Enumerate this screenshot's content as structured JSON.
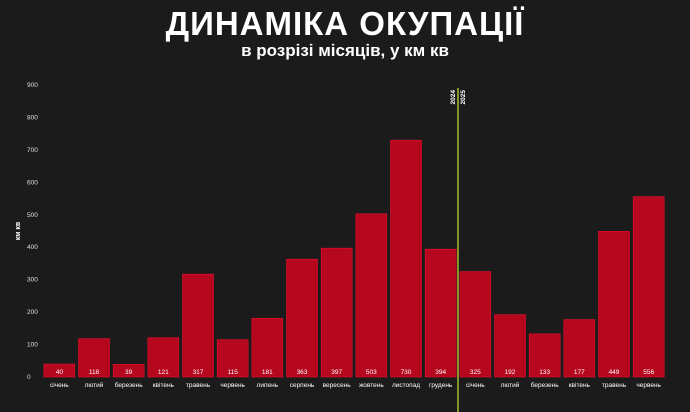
{
  "title": "ДИНАМІКА ОКУПАЦІЇ",
  "subtitle": "в розрізі місяців, у км кв",
  "chart_data": {
    "type": "bar",
    "ylabel": "км кв",
    "ylim": [
      0,
      900
    ],
    "yticks": [
      0,
      100,
      200,
      300,
      400,
      500,
      600,
      700,
      800,
      900
    ],
    "grid": false,
    "categories": [
      "січень",
      "лютий",
      "березень",
      "квітень",
      "травень",
      "червень",
      "липень",
      "серпень",
      "вересень",
      "жовтень",
      "листопад",
      "грудень",
      "січень",
      "лютий",
      "березень",
      "квітень",
      "травень",
      "червень"
    ],
    "values": [
      40,
      118,
      39,
      121,
      317,
      115,
      181,
      363,
      397,
      503,
      730,
      394,
      325,
      192,
      133,
      177,
      449,
      556
    ],
    "data_labels": [
      "40",
      "118",
      "39",
      "121",
      "317",
      "115",
      "181",
      "363",
      "397",
      "503",
      "730",
      "394",
      "325",
      "192",
      "133",
      "177",
      "449",
      "556"
    ],
    "year_divider": {
      "after_index": 11,
      "left_label": "2024",
      "right_label": "2025"
    },
    "colors": {
      "bar": "#b5071d",
      "bar_edge": "#e8102c",
      "divider": "#c8e632",
      "background": "#1b1b1b",
      "text": "#ffffff"
    }
  }
}
